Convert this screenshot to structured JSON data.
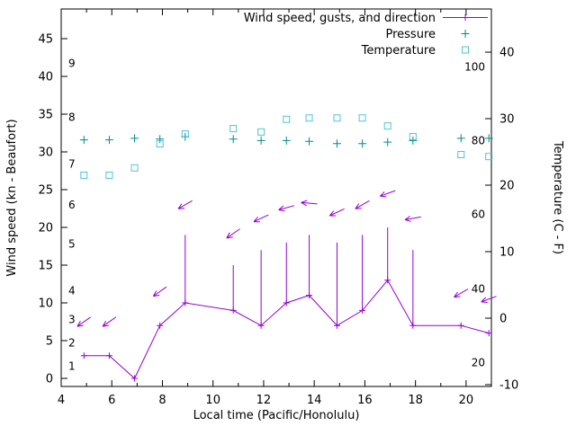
{
  "chart_data": {
    "type": "line",
    "title": "",
    "xlabel": "Local time (Pacific/Honolulu)",
    "ylabel_left": "Wind speed (kn - Beaufort)",
    "ylabel_right": "Temperature (C - F)",
    "x_range": [
      4,
      21
    ],
    "y_left_range": [
      -1.07,
      48.93
    ],
    "y_right_range": [
      -10.27,
      46.49
    ],
    "x_major_ticks": [
      4,
      6,
      8,
      10,
      12,
      14,
      16,
      18,
      20
    ],
    "x_minor_ticks": [
      5,
      7,
      9,
      11,
      13,
      15,
      17,
      19,
      21
    ],
    "y_left_ticks": [
      0,
      5,
      10,
      15,
      20,
      25,
      30,
      35,
      40,
      45
    ],
    "y_right_ticks": [
      -10,
      0,
      10,
      20,
      30,
      40
    ],
    "beaufort_scale_labels": [
      {
        "label": "1",
        "kn": 1.6
      },
      {
        "label": "2",
        "kn": 4.7
      },
      {
        "label": "3",
        "kn": 7.8
      },
      {
        "label": "4",
        "kn": 11.6
      },
      {
        "label": "5",
        "kn": 17.8
      },
      {
        "label": "6",
        "kn": 23.0
      },
      {
        "label": "7",
        "kn": 28.4
      },
      {
        "label": "8",
        "kn": 34.6
      },
      {
        "label": "9",
        "kn": 41.7
      }
    ],
    "fahrenheit_scale_labels": [
      {
        "label": "20",
        "c": -6.7
      },
      {
        "label": "40",
        "c": 4.4
      },
      {
        "label": "60",
        "c": 15.6
      },
      {
        "label": "80",
        "c": 26.7
      },
      {
        "label": "100",
        "c": 37.8
      }
    ],
    "legend": [
      {
        "label": "Wind speed, gusts, and direction",
        "series": "wind",
        "marker": "line-plus"
      },
      {
        "label": "Pressure",
        "series": "pressure",
        "marker": "plus"
      },
      {
        "label": "Temperature",
        "series": "temperature",
        "marker": "square"
      }
    ],
    "colors": {
      "wind": "#9400d3",
      "pressure": "#008b8b",
      "temperature": "#4fc3dc",
      "axis": "#000000",
      "background": "#ffffff"
    },
    "series": {
      "wind": {
        "x": [
          4.9,
          5.9,
          6.9,
          7.9,
          8.9,
          10.8,
          11.9,
          12.9,
          13.8,
          14.9,
          15.9,
          16.9,
          17.9,
          19.8,
          20.9
        ],
        "speed_kn": [
          3,
          3,
          0,
          7,
          10,
          9,
          7,
          10,
          11,
          7,
          9,
          13,
          7,
          7,
          6
        ],
        "gust_kn": [
          3,
          3,
          0,
          7,
          19,
          15,
          17,
          18,
          19,
          18,
          19,
          20,
          17,
          7,
          6
        ],
        "arrow_y_kn": [
          7.5,
          7.5,
          null,
          11.5,
          23,
          19.2,
          21.2,
          22.6,
          23.2,
          22,
          23,
          24.5,
          21.2,
          11.3,
          10.5
        ],
        "arrow_dir_deg": [
          215,
          215,
          null,
          215,
          210,
          215,
          205,
          195,
          175,
          205,
          210,
          200,
          190,
          210,
          200
        ]
      },
      "pressure": {
        "x": [
          4.9,
          5.9,
          6.9,
          7.9,
          8.9,
          10.8,
          11.9,
          12.9,
          13.8,
          14.9,
          15.9,
          16.9,
          17.9,
          19.8,
          20.9
        ],
        "value_kn_scale": [
          31.6,
          31.6,
          31.8,
          31.7,
          32.0,
          31.7,
          31.5,
          31.5,
          31.4,
          31.1,
          31.1,
          31.3,
          31.5,
          31.8,
          31.8
        ]
      },
      "temperature": {
        "x": [
          4.9,
          5.9,
          6.9,
          7.9,
          8.9,
          10.8,
          11.9,
          12.9,
          13.8,
          14.9,
          15.9,
          16.9,
          17.9,
          19.8,
          20.9
        ],
        "celsius": [
          21.5,
          21.5,
          22.6,
          26.2,
          27.7,
          28.5,
          28.0,
          29.9,
          30.1,
          30.1,
          30.1,
          28.9,
          27.3,
          24.6,
          24.3
        ]
      }
    }
  }
}
